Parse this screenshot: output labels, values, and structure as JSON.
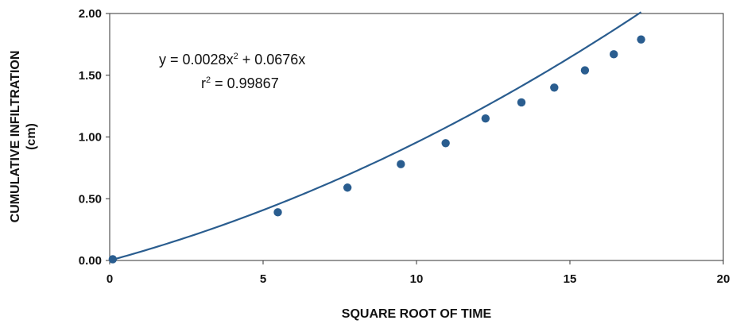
{
  "chart_data": {
    "type": "scatter",
    "xlabel": "SQUARE ROOT OF TIME",
    "ylabel_line1": "CUMULATIVE INFILTRATION",
    "ylabel_line2": "(cm)",
    "xlim": [
      0,
      20
    ],
    "ylim": [
      0,
      2
    ],
    "x_ticks": [
      0,
      5,
      10,
      15,
      20
    ],
    "x_tick_labels": [
      "0",
      "5",
      "10",
      "15",
      "20"
    ],
    "y_ticks": [
      0,
      0.5,
      1,
      1.5,
      2
    ],
    "y_tick_labels": [
      "0.00",
      "0.50",
      "1.00",
      "1.50",
      "2.00"
    ],
    "grid": false,
    "marker_color": "#2a5d8f",
    "line_color": "#2a5d8f",
    "series": [
      {
        "x": [
          0.1,
          5.48,
          7.75,
          9.49,
          10.95,
          12.25,
          13.42,
          14.49,
          15.49,
          16.43,
          17.32
        ],
        "y": [
          0.01,
          0.39,
          0.59,
          0.78,
          0.95,
          1.15,
          1.28,
          1.4,
          1.54,
          1.67,
          1.79
        ]
      }
    ],
    "trendline": {
      "type": "polynomial",
      "coefficients": {
        "a": 0.0028,
        "b": 0.0676,
        "c": 0
      },
      "x_range": [
        0,
        17.32
      ],
      "equation_label": {
        "prefix": "y = 0.0028x",
        "exponent": "2",
        "suffix": " + 0.0676x"
      },
      "r2_label": {
        "prefix": "r",
        "exponent": "2",
        "suffix": " = 0.99867"
      }
    }
  }
}
